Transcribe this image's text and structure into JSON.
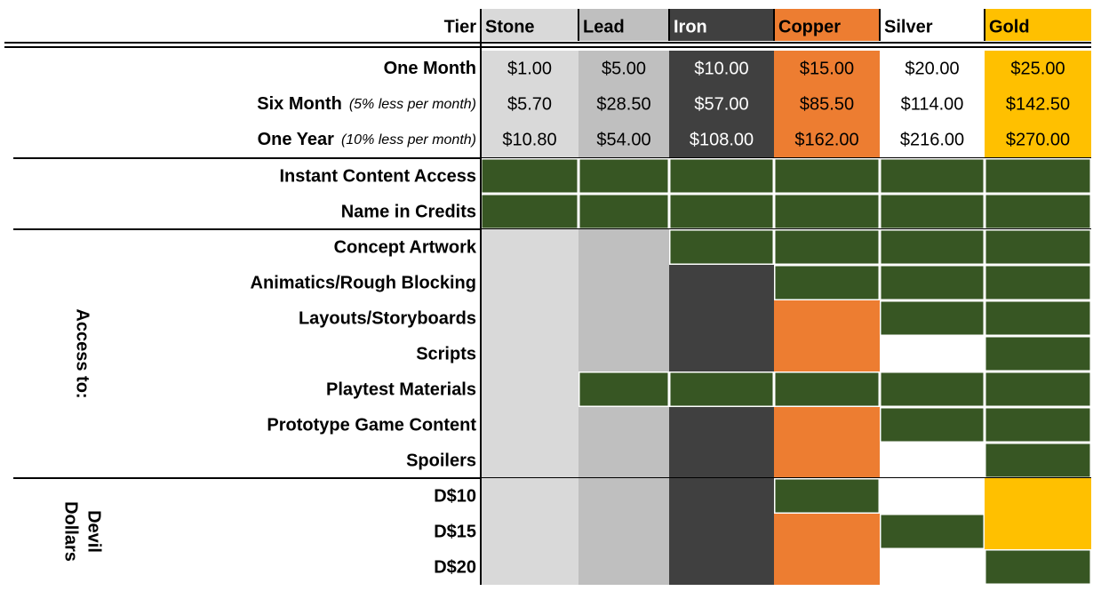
{
  "header": {
    "label": "Tier"
  },
  "tiers": [
    {
      "name": "Stone",
      "color": "#d9d9d9",
      "text_color": "#000000"
    },
    {
      "name": "Lead",
      "color": "#bfbfbf",
      "text_color": "#000000"
    },
    {
      "name": "Iron",
      "color": "#404040",
      "text_color": "#ffffff"
    },
    {
      "name": "Copper",
      "color": "#ed7d31",
      "text_color": "#000000"
    },
    {
      "name": "Silver",
      "color": "#ffffff",
      "text_color": "#000000"
    },
    {
      "name": "Gold",
      "color": "#ffc000",
      "text_color": "#000000"
    }
  ],
  "included_color": "#375623",
  "prices": [
    {
      "label": "One Month",
      "values": [
        "$1.00",
        "$5.00",
        "$10.00",
        "$15.00",
        "$20.00",
        "$25.00"
      ]
    },
    {
      "label": "Six Month",
      "note": "(5% less per month)",
      "values": [
        "$5.70",
        "$28.50",
        "$57.00",
        "$85.50",
        "$114.00",
        "$142.50"
      ]
    },
    {
      "label": "One Year",
      "note": "(10% less per month)",
      "values": [
        "$10.80",
        "$54.00",
        "$108.00",
        "$162.00",
        "$216.00",
        "$270.00"
      ]
    }
  ],
  "sections": [
    {
      "rows": [
        {
          "label": "Instant Content Access",
          "included": [
            true,
            true,
            true,
            true,
            true,
            true
          ]
        },
        {
          "label": "Name in Credits",
          "included": [
            true,
            true,
            true,
            true,
            true,
            true
          ]
        }
      ]
    },
    {
      "title_lines": [
        "Access to:"
      ],
      "rows": [
        {
          "label": "Concept Artwork",
          "included": [
            false,
            false,
            true,
            true,
            true,
            true
          ]
        },
        {
          "label": "Animatics/Rough Blocking",
          "included": [
            false,
            false,
            false,
            true,
            true,
            true
          ]
        },
        {
          "label": "Layouts/Storyboards",
          "included": [
            false,
            false,
            false,
            false,
            true,
            true
          ]
        },
        {
          "label": "Scripts",
          "included": [
            false,
            false,
            false,
            false,
            false,
            true
          ]
        },
        {
          "label": "Playtest Materials",
          "included": [
            false,
            true,
            true,
            true,
            true,
            true
          ]
        },
        {
          "label": "Prototype Game Content",
          "included": [
            false,
            false,
            false,
            false,
            true,
            true
          ]
        },
        {
          "label": "Spoilers",
          "included": [
            false,
            false,
            false,
            false,
            false,
            true
          ]
        }
      ]
    },
    {
      "title_lines": [
        "Devil",
        "Dollars"
      ],
      "rows": [
        {
          "label": "D$10",
          "included": [
            false,
            false,
            false,
            true,
            false,
            false
          ]
        },
        {
          "label": "D$15",
          "included": [
            false,
            false,
            false,
            false,
            true,
            false
          ]
        },
        {
          "label": "D$20",
          "included": [
            false,
            false,
            false,
            false,
            false,
            true
          ]
        }
      ]
    }
  ]
}
